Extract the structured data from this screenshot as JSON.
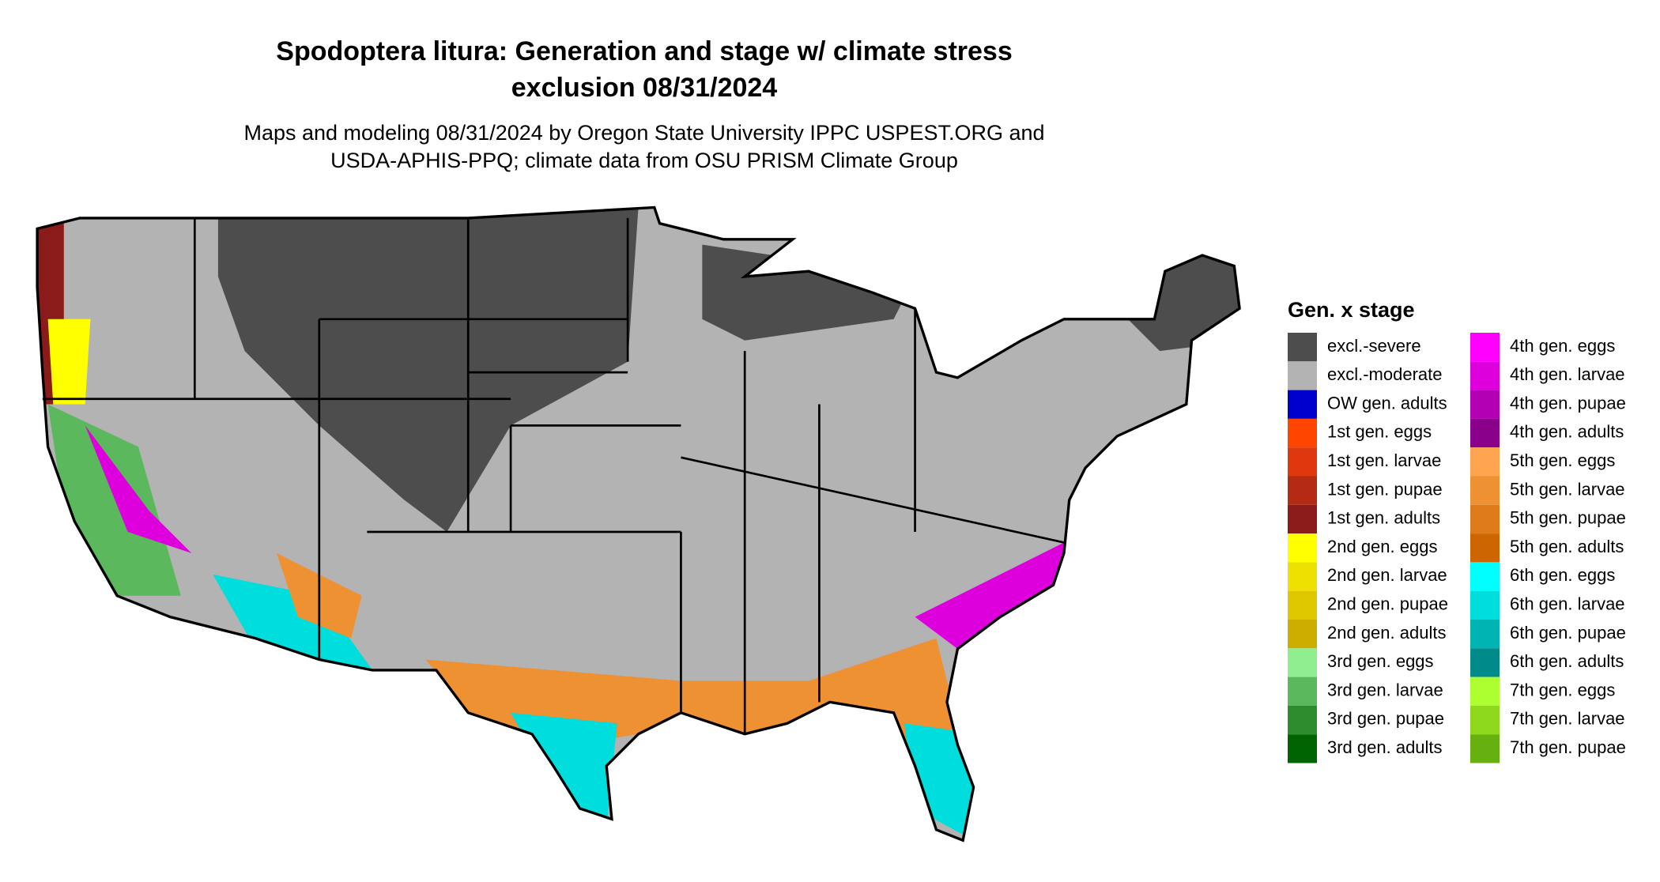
{
  "header": {
    "title": [
      "Spodoptera litura: Generation and stage w/ climate stress",
      "exclusion 08/31/2024"
    ],
    "subtitle": [
      "Maps and modeling 08/31/2024 by Oregon State University IPPC USPEST.ORG and",
      "USDA-APHIS-PPQ; climate data from OSU PRISM Climate Group"
    ]
  },
  "legend": {
    "title": "Gen. x stage",
    "items": [
      {
        "label": "excl.-severe",
        "color": "#4d4d4d"
      },
      {
        "label": "excl.-moderate",
        "color": "#b3b3b3"
      },
      {
        "label": "OW gen. adults",
        "color": "#0000cd"
      },
      {
        "label": "1st gen. eggs",
        "color": "#ff4500"
      },
      {
        "label": "1st gen. larvae",
        "color": "#e0380e"
      },
      {
        "label": "1st gen. pupae",
        "color": "#b52a14"
      },
      {
        "label": "1st gen. adults",
        "color": "#8b1a1a"
      },
      {
        "label": "2nd gen. eggs",
        "color": "#ffff00"
      },
      {
        "label": "2nd gen. larvae",
        "color": "#eee000"
      },
      {
        "label": "2nd gen. pupae",
        "color": "#e0c800"
      },
      {
        "label": "2nd gen. adults",
        "color": "#cdad00"
      },
      {
        "label": "3rd gen. eggs",
        "color": "#90ee90"
      },
      {
        "label": "3rd gen. larvae",
        "color": "#5cb85c"
      },
      {
        "label": "3rd gen. pupae",
        "color": "#2e8b2e"
      },
      {
        "label": "3rd gen. adults",
        "color": "#006400"
      },
      {
        "label": "4th gen. eggs",
        "color": "#ff00ff"
      },
      {
        "label": "4th gen. larvae",
        "color": "#dd00dd"
      },
      {
        "label": "4th gen. pupae",
        "color": "#b400b4"
      },
      {
        "label": "4th gen. adults",
        "color": "#8b008b"
      },
      {
        "label": "5th gen. eggs",
        "color": "#ffa54f"
      },
      {
        "label": "5th gen. larvae",
        "color": "#ee9133"
      },
      {
        "label": "5th gen. pupae",
        "color": "#dd7a1a"
      },
      {
        "label": "5th gen. adults",
        "color": "#cd6600"
      },
      {
        "label": "6th gen. eggs",
        "color": "#00ffff"
      },
      {
        "label": "6th gen. larvae",
        "color": "#00dddd"
      },
      {
        "label": "6th gen. pupae",
        "color": "#00b4b4"
      },
      {
        "label": "6th gen. adults",
        "color": "#008b8b"
      },
      {
        "label": "7th gen. eggs",
        "color": "#adff2f"
      },
      {
        "label": "7th gen. larvae",
        "color": "#8ed81e"
      },
      {
        "label": "7th gen. pupae",
        "color": "#66b010"
      }
    ]
  }
}
